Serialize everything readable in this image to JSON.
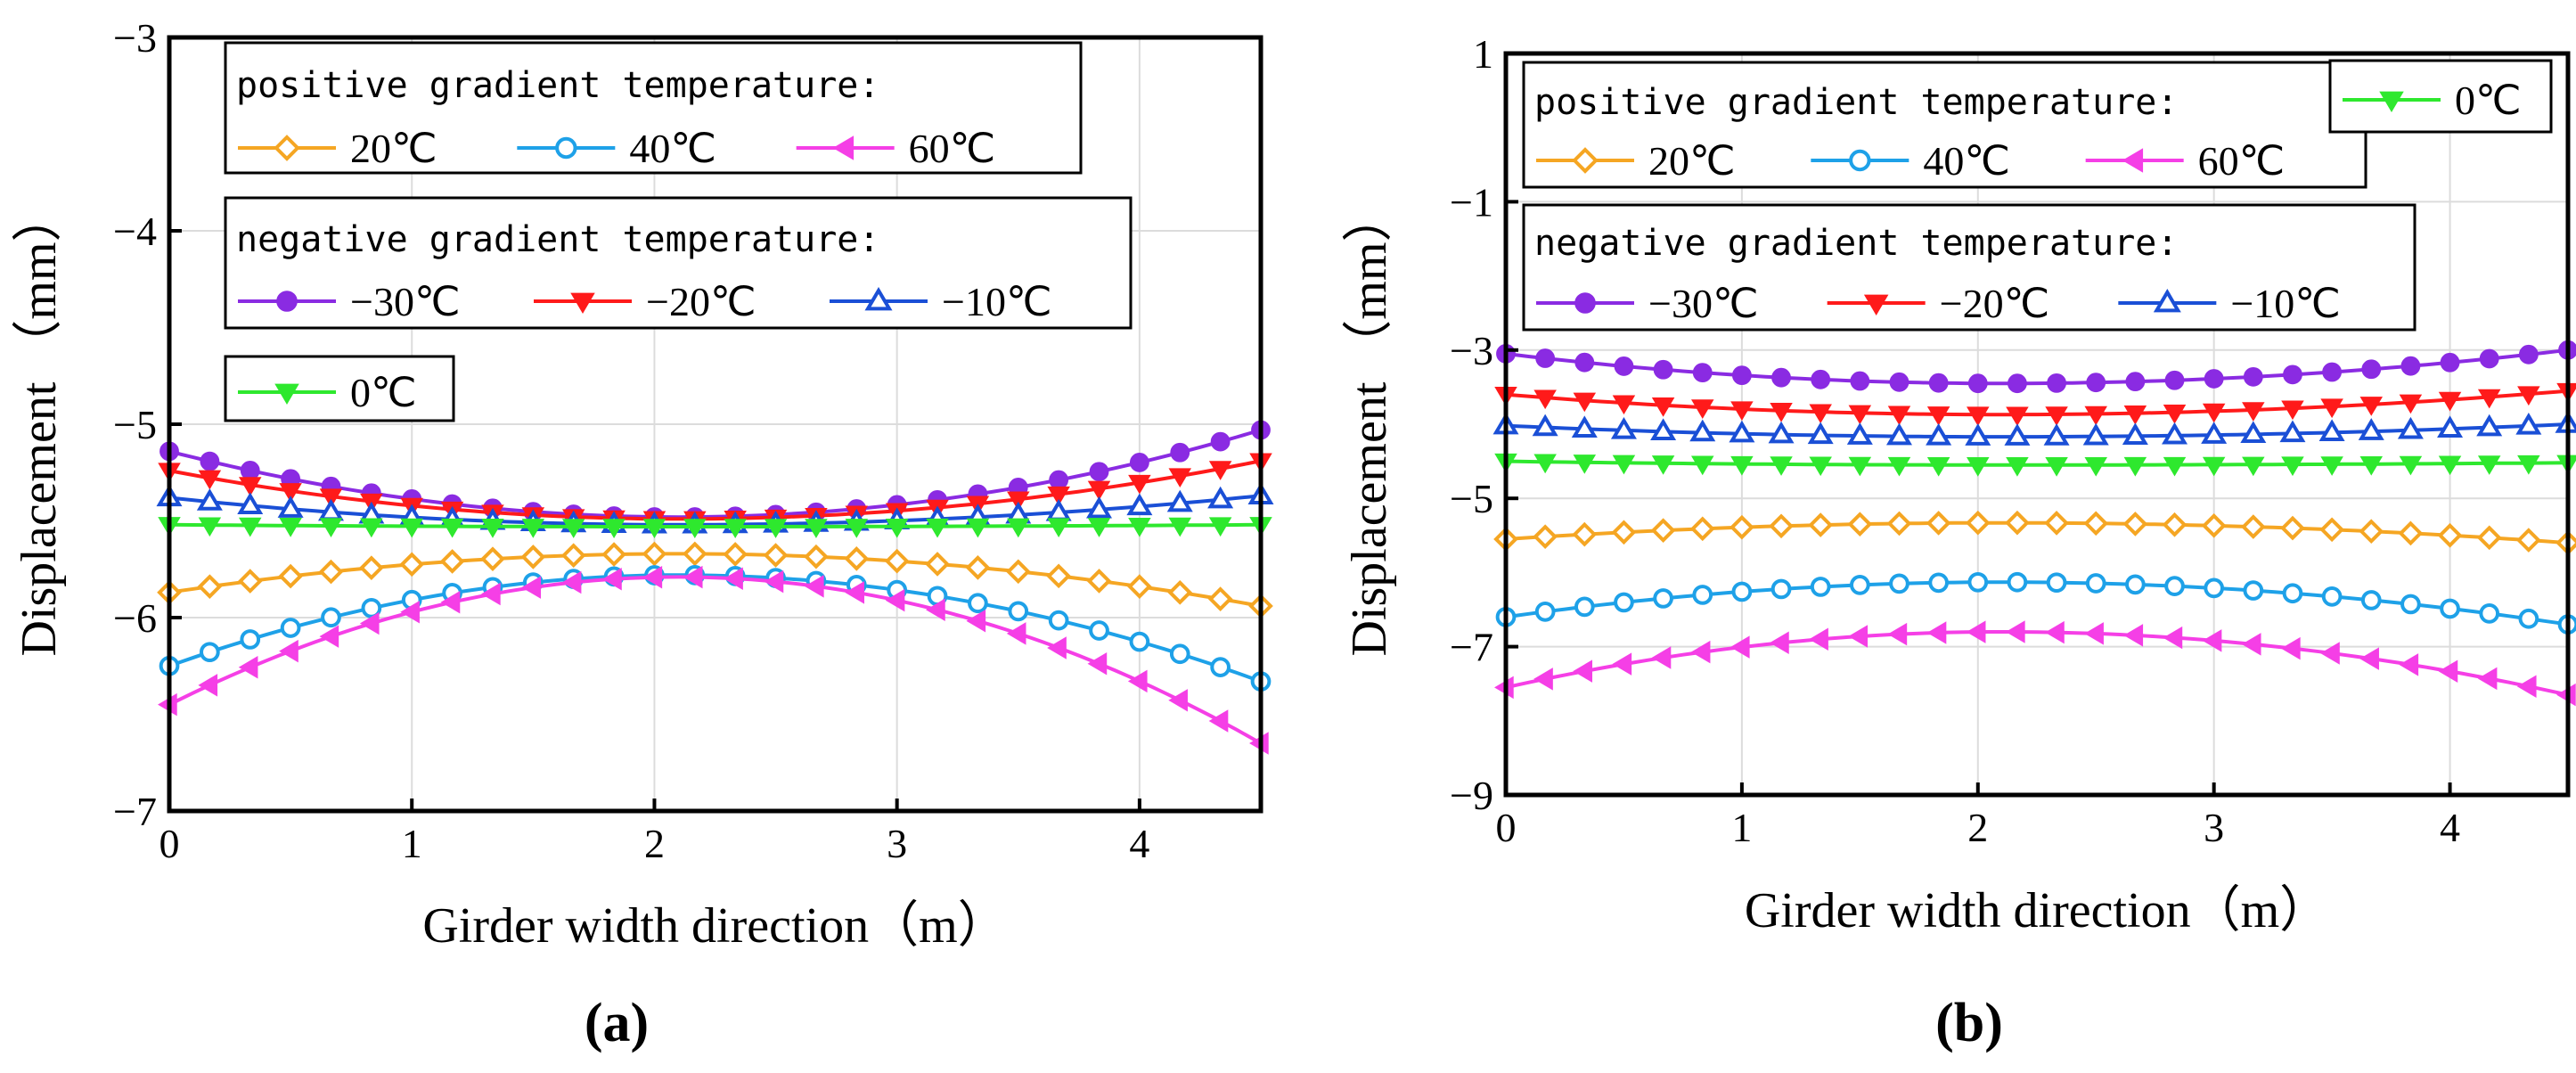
{
  "chart_data": [
    {
      "panel": "(a)",
      "type": "line",
      "xlabel": "Girder width direction（m）",
      "ylabel": "Displacement （mm）",
      "xlim": [
        0,
        4.5
      ],
      "ylim": [
        -7,
        -3
      ],
      "xticks": [
        0,
        1,
        2,
        3,
        4
      ],
      "yticks": [
        -7,
        -6,
        -5,
        -4,
        -3
      ],
      "xtick_labels": [
        "0",
        "1",
        "2",
        "3",
        "4"
      ],
      "ytick_labels": [
        "−7",
        "−6",
        "−5",
        "−4",
        "−3"
      ],
      "legend_groups": [
        {
          "title": "positive gradient temperature:",
          "entries": [
            "20℃",
            "40℃",
            "60℃"
          ]
        },
        {
          "title": "negative gradient temperature:",
          "entries": [
            "−30℃",
            "−20℃",
            "−10℃"
          ]
        },
        {
          "title": "",
          "entries": [
            "0℃"
          ]
        }
      ],
      "series": [
        {
          "name": "20℃",
          "color": "#f5a623",
          "marker": "diamond-open",
          "y0": -5.87,
          "ymid": -5.67,
          "yend": -5.94,
          "xpeak": 2.1
        },
        {
          "name": "40℃",
          "color": "#1ea1e8",
          "marker": "circle-open",
          "y0": -6.25,
          "ymid": -5.78,
          "yend": -6.33,
          "xpeak": 2.1
        },
        {
          "name": "60℃",
          "color": "#f53fe6",
          "marker": "triangle-left-filled",
          "y0": -6.45,
          "ymid": -5.79,
          "yend": -6.65,
          "xpeak": 2.1
        },
        {
          "name": "−30℃",
          "color": "#8a2be2",
          "marker": "circle-filled",
          "y0": -5.14,
          "ymid": -5.48,
          "yend": -5.03,
          "xpeak": 2.1
        },
        {
          "name": "−20℃",
          "color": "#ff1a1a",
          "marker": "triangle-down-filled",
          "y0": -5.24,
          "ymid": -5.49,
          "yend": -5.19,
          "xpeak": 2.1
        },
        {
          "name": "−10℃",
          "color": "#1a4fd6",
          "marker": "triangle-up-open",
          "y0": -5.38,
          "ymid": -5.52,
          "yend": -5.37,
          "xpeak": 2.1
        },
        {
          "name": "0℃",
          "color": "#2ee82e",
          "marker": "triangle-down-filled",
          "y0": -5.52,
          "ymid": -5.53,
          "yend": -5.52,
          "xpeak": 2.1
        }
      ]
    },
    {
      "panel": "(b)",
      "type": "line",
      "xlabel": "Girder width direction（m）",
      "ylabel": "Displacement （mm）",
      "xlim": [
        0,
        4.5
      ],
      "ylim": [
        -9,
        1
      ],
      "xticks": [
        0,
        1,
        2,
        3,
        4
      ],
      "yticks": [
        -9,
        -7,
        -5,
        -3,
        -1,
        1
      ],
      "xtick_labels": [
        "0",
        "1",
        "2",
        "3",
        "4"
      ],
      "ytick_labels": [
        "−9",
        "−7",
        "−5",
        "−3",
        "−1",
        "1"
      ],
      "legend_groups": [
        {
          "title": "positive gradient temperature:",
          "entries": [
            "20℃",
            "40℃",
            "60℃"
          ]
        },
        {
          "title": "",
          "entries": [
            "0℃"
          ]
        },
        {
          "title": "negative gradient temperature:",
          "entries": [
            "−30℃",
            "−20℃",
            "−10℃"
          ]
        }
      ],
      "series": [
        {
          "name": "20℃",
          "color": "#f5a623",
          "marker": "diamond-open",
          "y0": -5.55,
          "ymid": -5.33,
          "yend": -5.6,
          "xpeak": 2.1
        },
        {
          "name": "40℃",
          "color": "#1ea1e8",
          "marker": "circle-open",
          "y0": -6.6,
          "ymid": -6.13,
          "yend": -6.7,
          "xpeak": 2.1
        },
        {
          "name": "60℃",
          "color": "#f53fe6",
          "marker": "triangle-left-filled",
          "y0": -7.55,
          "ymid": -6.8,
          "yend": -7.65,
          "xpeak": 2.1
        },
        {
          "name": "−30℃",
          "color": "#8a2be2",
          "marker": "circle-filled",
          "y0": -3.05,
          "ymid": -3.45,
          "yend": -3.0,
          "xpeak": 2.1
        },
        {
          "name": "−20℃",
          "color": "#ff1a1a",
          "marker": "triangle-down-filled",
          "y0": -3.6,
          "ymid": -3.87,
          "yend": -3.55,
          "xpeak": 2.1
        },
        {
          "name": "−10℃",
          "color": "#1a4fd6",
          "marker": "triangle-up-open",
          "y0": -4.02,
          "ymid": -4.17,
          "yend": -4.0,
          "xpeak": 2.1
        },
        {
          "name": "0℃",
          "color": "#2ee82e",
          "marker": "triangle-down-filled",
          "y0": -4.5,
          "ymid": -4.55,
          "yend": -4.52,
          "xpeak": 2.1
        }
      ]
    }
  ]
}
